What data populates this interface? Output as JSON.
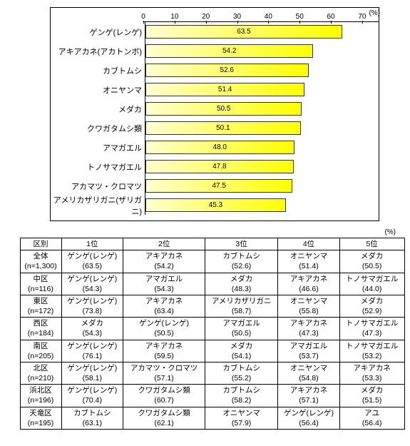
{
  "chart": {
    "type": "bar-horizontal",
    "axis_unit": "(%)",
    "xmax": 70,
    "xtick_step": 10,
    "ticks": [
      0,
      10,
      20,
      30,
      40,
      50,
      60,
      70
    ],
    "bar_gradient_from": "#ffffd0",
    "bar_gradient_to": "#ffff00",
    "bar_border": "#333333",
    "items": [
      {
        "label": "ゲンゲ(レンゲ)",
        "value": 63.5
      },
      {
        "label": "アキアカネ(アカトンボ)",
        "value": 54.2
      },
      {
        "label": "カブトムシ",
        "value": 52.6
      },
      {
        "label": "オニヤンマ",
        "value": 51.4
      },
      {
        "label": "メダカ",
        "value": 50.5
      },
      {
        "label": "クワガタムシ類",
        "value": 50.1
      },
      {
        "label": "アマガエル",
        "value": 48.0
      },
      {
        "label": "トノサマガエル",
        "value": 47.8
      },
      {
        "label": "アカマツ・クロマツ",
        "value": 47.5
      },
      {
        "label": "アメリカザリガニ(ザリガニ)",
        "value": 45.3
      }
    ]
  },
  "table": {
    "unit": "(%)",
    "header": [
      "区別",
      "1位",
      "2位",
      "3位",
      "4位",
      "5位"
    ],
    "rows": [
      {
        "area": "全体",
        "n": "(n=1,300)",
        "cells": [
          {
            "name": "ゲンゲ(レンゲ)",
            "val": "(63.5)"
          },
          {
            "name": "アキアカネ",
            "val": "(54.2)"
          },
          {
            "name": "カブトムシ",
            "val": "(52.6)"
          },
          {
            "name": "オニヤンマ",
            "val": "(51.4)"
          },
          {
            "name": "メダカ",
            "val": "(50.5)"
          }
        ]
      },
      {
        "area": "中区",
        "n": "(n=116)",
        "cells": [
          {
            "name": "ゲンゲ(レンゲ)",
            "val": "(54.3)"
          },
          {
            "name": "アマガエル",
            "val": "(54.3)"
          },
          {
            "name": "メダカ",
            "val": "(48.3)"
          },
          {
            "name": "アキアカネ",
            "val": "(46.6)"
          },
          {
            "name": "トノサマガエル",
            "val": "(44.0)"
          }
        ]
      },
      {
        "area": "東区",
        "n": "(n=172)",
        "cells": [
          {
            "name": "ゲンゲ(レンゲ)",
            "val": "(73.8)"
          },
          {
            "name": "アキアカネ",
            "val": "(63.4)"
          },
          {
            "name": "アメリカザリガニ",
            "val": "(58.7)"
          },
          {
            "name": "オニヤンマ",
            "val": "(55.8)"
          },
          {
            "name": "メダカ",
            "val": "(52.9)"
          }
        ]
      },
      {
        "area": "西区",
        "n": "(n=184)",
        "cells": [
          {
            "name": "メダカ",
            "val": "(54.3)"
          },
          {
            "name": "ゲンゲ(レンゲ)",
            "val": "(50.5)"
          },
          {
            "name": "アマガエル",
            "val": "(50.5)"
          },
          {
            "name": "アキアカネ",
            "val": "(47.3)"
          },
          {
            "name": "トノサマガエル",
            "val": "(47.3)"
          }
        ]
      },
      {
        "area": "南区",
        "n": "(n=205)",
        "cells": [
          {
            "name": "ゲンゲ(レンゲ)",
            "val": "(76.1)"
          },
          {
            "name": "アキアカネ",
            "val": "(59.5)"
          },
          {
            "name": "メダカ",
            "val": "(54.1)"
          },
          {
            "name": "アマガエル",
            "val": "(53.7)"
          },
          {
            "name": "トノサマガエル",
            "val": "(53.2)"
          }
        ]
      },
      {
        "area": "北区",
        "n": "(n=210)",
        "cells": [
          {
            "name": "ゲンゲ(レンゲ)",
            "val": "(58.1)"
          },
          {
            "name": "アカマツ・クロマツ",
            "val": "(57.1)"
          },
          {
            "name": "カブトムシ",
            "val": "(55.2)"
          },
          {
            "name": "オニヤンマ",
            "val": "(54.8)"
          },
          {
            "name": "アキアカネ",
            "val": "(53.3)"
          }
        ]
      },
      {
        "area": "浜北区",
        "n": "(n=196)",
        "cells": [
          {
            "name": "ゲンゲ(レンゲ)",
            "val": "(70.4)"
          },
          {
            "name": "クワガタムシ類",
            "val": "(60.7)"
          },
          {
            "name": "カブトムシ",
            "val": "(58.2)"
          },
          {
            "name": "アキアカネ",
            "val": "(57.1)"
          },
          {
            "name": "メダカ",
            "val": "(51.5)"
          }
        ]
      },
      {
        "area": "天竜区",
        "n": "(n=195)",
        "cells": [
          {
            "name": "カブトムシ",
            "val": "(63.1)"
          },
          {
            "name": "クワガタムシ類",
            "val": "(62.1)"
          },
          {
            "name": "オニヤンマ",
            "val": "(57.9)"
          },
          {
            "name": "ゲンゲ(レンゲ)",
            "val": "(56.4)"
          },
          {
            "name": "アユ",
            "val": "(56.4)"
          }
        ]
      }
    ]
  }
}
